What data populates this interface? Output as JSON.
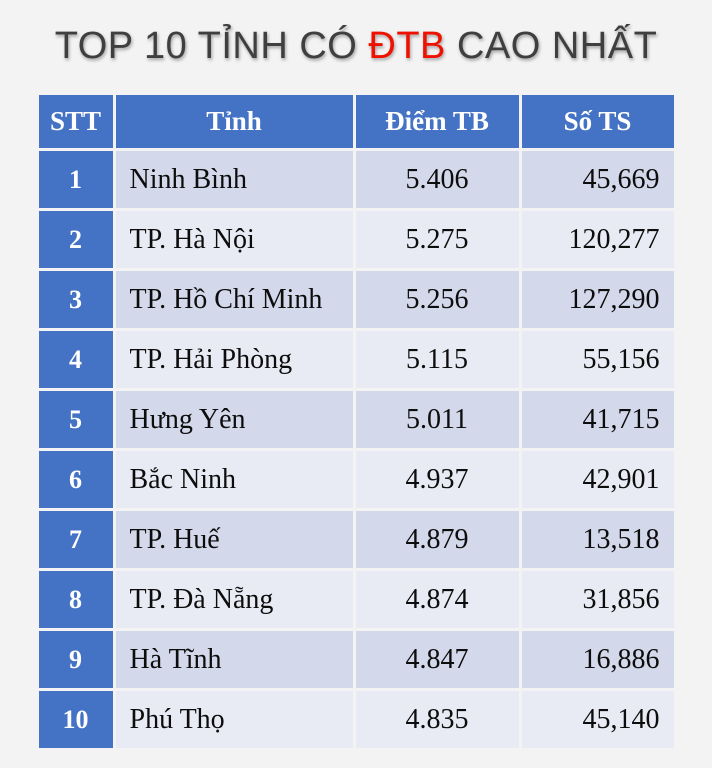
{
  "title": {
    "prefix": "TOP 10 TỈNH CÓ ",
    "highlight": "ĐTB",
    "suffix": " CAO NHẤT"
  },
  "colors": {
    "page_bg": "#F3F3F4",
    "header_blue": "#4472C4",
    "row_odd": "#D3D8EA",
    "row_even": "#E9EBF4",
    "title_gray": "#3F3F3F",
    "title_red": "#EE1100"
  },
  "table": {
    "columns": [
      {
        "key": "stt",
        "label": "STT"
      },
      {
        "key": "tinh",
        "label": "Tỉnh"
      },
      {
        "key": "diem_tb",
        "label": "Điểm TB"
      },
      {
        "key": "so_ts",
        "label": "Số TS"
      }
    ],
    "rows": [
      {
        "stt": "1",
        "tinh": "Ninh Bình",
        "diem_tb": "5.406",
        "so_ts": "45,669"
      },
      {
        "stt": "2",
        "tinh": "TP. Hà Nội",
        "diem_tb": "5.275",
        "so_ts": "120,277"
      },
      {
        "stt": "3",
        "tinh": "TP. Hồ Chí Minh",
        "diem_tb": "5.256",
        "so_ts": "127,290"
      },
      {
        "stt": "4",
        "tinh": "TP. Hải Phòng",
        "diem_tb": "5.115",
        "so_ts": "55,156"
      },
      {
        "stt": "5",
        "tinh": "Hưng Yên",
        "diem_tb": "5.011",
        "so_ts": "41,715"
      },
      {
        "stt": "6",
        "tinh": "Bắc Ninh",
        "diem_tb": "4.937",
        "so_ts": "42,901"
      },
      {
        "stt": "7",
        "tinh": "TP. Huế",
        "diem_tb": "4.879",
        "so_ts": "13,518"
      },
      {
        "stt": "8",
        "tinh": "TP. Đà Nẵng",
        "diem_tb": "4.874",
        "so_ts": "31,856"
      },
      {
        "stt": "9",
        "tinh": "Hà Tĩnh",
        "diem_tb": "4.847",
        "so_ts": "16,886"
      },
      {
        "stt": "10",
        "tinh": "Phú Thọ",
        "diem_tb": "4.835",
        "so_ts": "45,140"
      }
    ]
  },
  "chart_data": {
    "type": "table",
    "title": "TOP 10 TỈNH CÓ ĐTB CAO NHẤT",
    "title_highlight": "ĐTB",
    "columns": [
      "STT",
      "Tỉnh",
      "Điểm TB",
      "Số TS"
    ],
    "rows": [
      [
        1,
        "Ninh Bình",
        5.406,
        45669
      ],
      [
        2,
        "TP. Hà Nội",
        5.275,
        120277
      ],
      [
        3,
        "TP. Hồ Chí Minh",
        5.256,
        127290
      ],
      [
        4,
        "TP. Hải Phòng",
        5.115,
        55156
      ],
      [
        5,
        "Hưng Yên",
        5.011,
        41715
      ],
      [
        6,
        "Bắc Ninh",
        4.937,
        42901
      ],
      [
        7,
        "TP. Huế",
        4.879,
        13518
      ],
      [
        8,
        "TP. Đà Nẵng",
        4.874,
        31856
      ],
      [
        9,
        "Hà Tĩnh",
        4.847,
        16886
      ],
      [
        10,
        "Phú Thọ",
        4.835,
        45140
      ]
    ]
  }
}
